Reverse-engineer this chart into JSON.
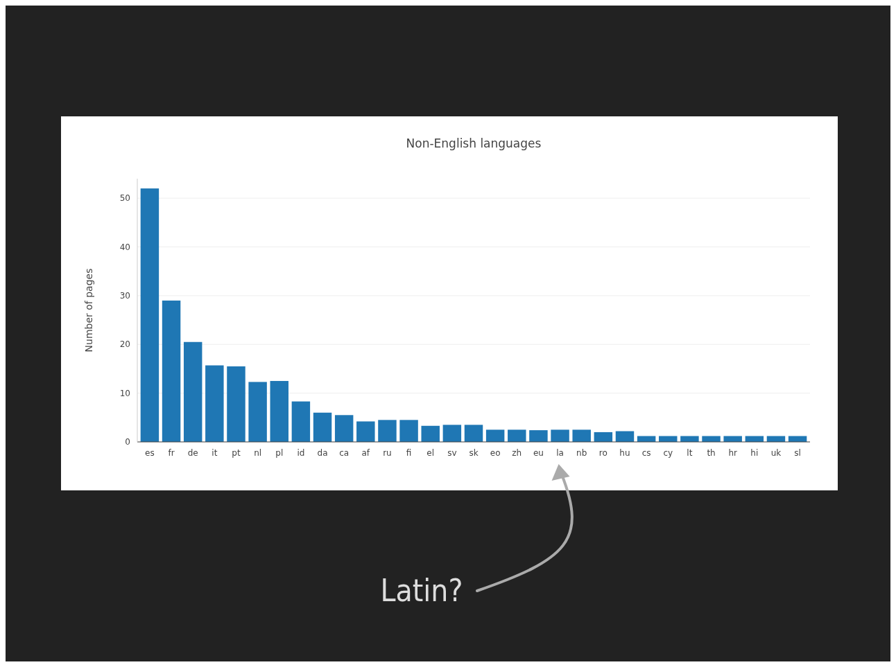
{
  "chart_data": {
    "type": "bar",
    "title": "Non-English languages",
    "ylabel": "Number of pages",
    "categories": [
      "es",
      "fr",
      "de",
      "it",
      "pt",
      "nl",
      "pl",
      "id",
      "da",
      "ca",
      "af",
      "ru",
      "fi",
      "el",
      "sv",
      "sk",
      "eo",
      "zh",
      "eu",
      "la",
      "nb",
      "ro",
      "hu",
      "cs",
      "cy",
      "lt",
      "th",
      "hr",
      "hi",
      "uk",
      "sl"
    ],
    "values": [
      52,
      29,
      20.5,
      15.7,
      15.5,
      12.3,
      12.5,
      8.3,
      6,
      5.5,
      4.2,
      4.5,
      4.5,
      3.3,
      3.5,
      3.5,
      2.5,
      2.5,
      2.4,
      2.5,
      2.5,
      2,
      2.2,
      1.2,
      1.2,
      1.2,
      1.2,
      1.2,
      1.2,
      1.2,
      1.2
    ],
    "color": "#1f77b4",
    "ylim": [
      0,
      54
    ],
    "yticks": [
      0,
      10,
      20,
      30,
      40,
      50
    ],
    "grid": "y",
    "annotations": [
      "Latin?"
    ]
  }
}
